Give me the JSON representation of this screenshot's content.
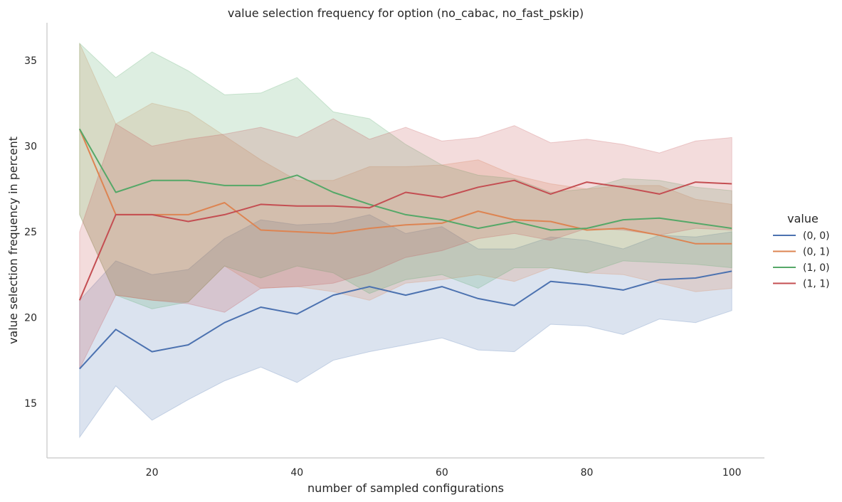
{
  "chart_data": {
    "type": "line",
    "title": "value selection frequency for option (no_cabac, no_fast_pskip)",
    "xlabel": "number of sampled configurations",
    "ylabel": "value selection frequency in percent",
    "xlim": [
      5.5,
      104.5
    ],
    "ylim": [
      11.8,
      37.2
    ],
    "xticks": [
      20,
      40,
      60,
      80,
      100
    ],
    "yticks": [
      15,
      20,
      25,
      30,
      35
    ],
    "grid": false,
    "legend": {
      "title": "value",
      "placement": "right"
    },
    "x": [
      10,
      15,
      20,
      25,
      30,
      35,
      40,
      45,
      50,
      55,
      60,
      65,
      70,
      75,
      80,
      85,
      90,
      95,
      100
    ],
    "series": [
      {
        "name": "(0, 0)",
        "color": "#4c72b0",
        "values": [
          17.0,
          19.3,
          18.0,
          18.4,
          19.7,
          20.6,
          20.2,
          21.3,
          21.8,
          21.3,
          21.8,
          21.1,
          20.7,
          22.1,
          21.9,
          21.6,
          22.2,
          22.3,
          22.7
        ],
        "lower": [
          13.0,
          16.0,
          14.0,
          15.2,
          16.3,
          17.1,
          16.2,
          17.5,
          18.0,
          18.4,
          18.8,
          18.1,
          18.0,
          19.6,
          19.5,
          19.0,
          19.9,
          19.7,
          20.4
        ],
        "upper": [
          21.0,
          23.3,
          22.5,
          22.8,
          24.6,
          25.7,
          25.4,
          25.5,
          26.0,
          24.9,
          25.3,
          24.0,
          24.0,
          24.7,
          24.5,
          24.0,
          24.8,
          24.7,
          25.0
        ]
      },
      {
        "name": "(0, 1)",
        "color": "#dd8452",
        "values": [
          31.0,
          26.0,
          26.0,
          26.0,
          26.7,
          25.1,
          25.0,
          24.9,
          25.2,
          25.4,
          25.5,
          26.2,
          25.7,
          25.6,
          25.1,
          25.2,
          24.8,
          24.3,
          24.3
        ],
        "lower": [
          26.0,
          21.3,
          21.0,
          20.9,
          23.0,
          21.7,
          21.8,
          21.5,
          21.0,
          22.0,
          22.2,
          22.5,
          22.1,
          22.9,
          22.6,
          22.5,
          22.0,
          21.5,
          21.7
        ],
        "upper": [
          36.0,
          31.3,
          32.5,
          32.0,
          30.6,
          29.2,
          28.0,
          28.0,
          28.8,
          28.8,
          28.9,
          29.2,
          28.3,
          27.8,
          27.5,
          27.7,
          27.7,
          26.9,
          26.6
        ]
      },
      {
        "name": "(1, 0)",
        "color": "#55a868",
        "values": [
          31.0,
          27.3,
          28.0,
          28.0,
          27.7,
          27.7,
          28.3,
          27.3,
          26.6,
          26.0,
          25.7,
          25.2,
          25.6,
          25.1,
          25.2,
          25.7,
          25.8,
          25.5,
          25.2
        ],
        "lower": [
          26.0,
          21.3,
          20.5,
          20.9,
          23.0,
          22.3,
          23.0,
          22.6,
          21.4,
          22.2,
          22.5,
          21.7,
          22.9,
          22.9,
          22.6,
          23.3,
          23.2,
          23.1,
          22.9
        ],
        "upper": [
          36.0,
          34.0,
          35.5,
          34.4,
          33.0,
          33.1,
          34.0,
          32.0,
          31.6,
          30.1,
          28.9,
          28.3,
          28.1,
          27.3,
          27.5,
          28.1,
          28.0,
          27.6,
          27.4
        ]
      },
      {
        "name": "(1, 1)",
        "color": "#c44e52",
        "values": [
          21.0,
          26.0,
          26.0,
          25.6,
          26.0,
          26.6,
          26.5,
          26.5,
          26.4,
          27.3,
          27.0,
          27.6,
          28.0,
          27.2,
          27.9,
          27.6,
          27.2,
          27.9,
          27.8
        ],
        "lower": [
          17.0,
          21.3,
          21.0,
          20.8,
          20.3,
          21.7,
          21.8,
          22.0,
          22.6,
          23.5,
          23.9,
          24.6,
          24.9,
          24.5,
          25.2,
          25.1,
          24.8,
          25.2,
          25.1
        ],
        "upper": [
          25.0,
          31.3,
          30.0,
          30.4,
          30.7,
          31.1,
          30.5,
          31.6,
          30.4,
          31.1,
          30.3,
          30.5,
          31.2,
          30.2,
          30.4,
          30.1,
          29.6,
          30.3,
          30.5
        ]
      }
    ]
  }
}
